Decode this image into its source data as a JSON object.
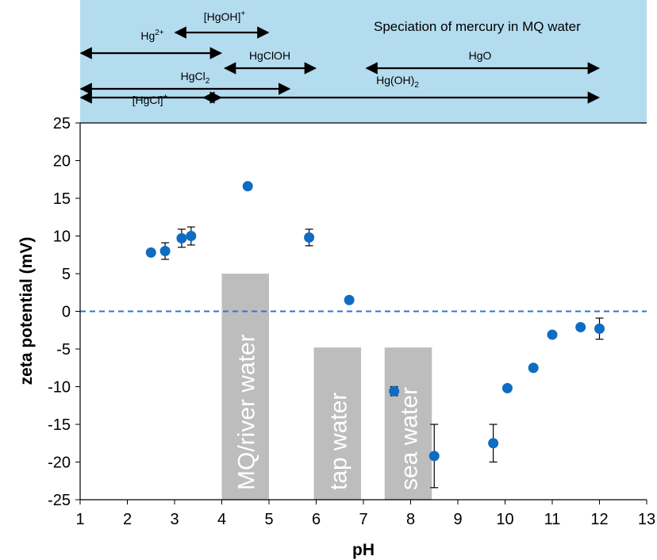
{
  "chart_data": {
    "type": "scatter",
    "xlabel": "pH",
    "ylabel": "zeta potential (mV)",
    "xlim": [
      1,
      13
    ],
    "ylim": [
      -25,
      25
    ],
    "x_ticks": [
      "1",
      "2",
      "3",
      "4",
      "5",
      "6",
      "7",
      "8",
      "9",
      "10",
      "11",
      "12",
      "13"
    ],
    "y_ticks": [
      "25",
      "20",
      "15",
      "10",
      "5",
      "0",
      "-5",
      "-10",
      "-15",
      "-20",
      "-25"
    ],
    "reference_line": {
      "y": 0,
      "style": "dashed",
      "color": "#2e75d6"
    },
    "marker_color": "#0f6cc3",
    "points": [
      {
        "x": 2.5,
        "y": 7.8,
        "err": 0
      },
      {
        "x": 2.8,
        "y": 8.0,
        "err": 1.1
      },
      {
        "x": 3.15,
        "y": 9.7,
        "err": 1.2
      },
      {
        "x": 3.35,
        "y": 10.0,
        "err": 1.2
      },
      {
        "x": 4.55,
        "y": 16.6,
        "err": 0
      },
      {
        "x": 5.85,
        "y": 9.8,
        "err": 1.1
      },
      {
        "x": 6.7,
        "y": 1.5,
        "err": 0
      },
      {
        "x": 7.65,
        "y": -10.6,
        "err": 0.6
      },
      {
        "x": 8.5,
        "y": -19.2,
        "err": 4.2
      },
      {
        "x": 9.75,
        "y": -17.5,
        "err": 2.5
      },
      {
        "x": 10.05,
        "y": -10.2,
        "err": 0
      },
      {
        "x": 10.6,
        "y": -7.5,
        "err": 0
      },
      {
        "x": 11.0,
        "y": -3.1,
        "err": 0
      },
      {
        "x": 11.6,
        "y": -2.1,
        "err": 0
      },
      {
        "x": 12.0,
        "y": -2.3,
        "err": 1.4
      }
    ],
    "bands": [
      {
        "label": "MQ/river water",
        "x_start": 4.0,
        "x_end": 5.0,
        "y_top": 5,
        "color": "#bdbdbd"
      },
      {
        "label": "tap water",
        "x_start": 5.95,
        "x_end": 6.95,
        "y_top": -4.8,
        "color": "#bdbdbd"
      },
      {
        "label": "sea water",
        "x_start": 7.45,
        "x_end": 8.45,
        "y_top": -4.8,
        "color": "#bdbdbd"
      }
    ]
  },
  "speciation": {
    "title": "Speciation of mercury in MQ water",
    "background_color": "#b4dcef",
    "species": [
      {
        "main": "[HgOH]",
        "sup": "+",
        "sub": "",
        "x_start": 3.0,
        "x_end": 5.0
      },
      {
        "main": "Hg",
        "sup": "2+",
        "sub": "",
        "x_start": 1.0,
        "x_end": 4.0
      },
      {
        "main": "HgClOH",
        "sup": "",
        "sub": "",
        "x_start": 4.05,
        "x_end": 6.0
      },
      {
        "main": "HgO",
        "sup": "",
        "sub": "",
        "x_start": 7.05,
        "x_end": 12.0
      },
      {
        "main": "HgCl",
        "sup": "",
        "sub": "2",
        "x_start": 1.0,
        "x_end": 5.45
      },
      {
        "main": "Hg(OH)",
        "sup": "",
        "sub": "2",
        "x_start": 3.6,
        "x_end": 12.0
      },
      {
        "main": "[HgCl]",
        "sup": "+",
        "sub": "",
        "x_start": 1.0,
        "x_end": 4.0
      }
    ]
  }
}
